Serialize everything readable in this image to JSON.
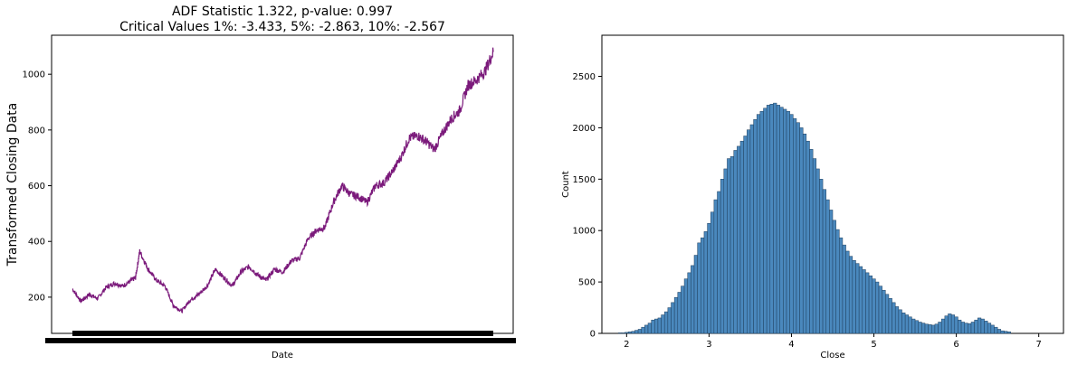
{
  "chart_data": [
    {
      "type": "line",
      "title_lines": [
        "ADF Statistic 1.322, p-value: 0.997",
        "Critical Values 1%: -3.433, 5%: -2.863, 10%: -2.567"
      ],
      "xlabel": "Date",
      "ylabel": "Transformed Closing Data",
      "ylim": [
        70,
        1140
      ],
      "yticks": [
        200,
        400,
        600,
        800,
        1000
      ],
      "line_color": "#7b1a7b",
      "series": [
        {
          "x": [
            0,
            0.02,
            0.04,
            0.06,
            0.08,
            0.1,
            0.12,
            0.14,
            0.15,
            0.16,
            0.18,
            0.2,
            0.22,
            0.24,
            0.26,
            0.28,
            0.3,
            0.32,
            0.34,
            0.36,
            0.38,
            0.4,
            0.42,
            0.44,
            0.46,
            0.48,
            0.5,
            0.52,
            0.54,
            0.56,
            0.58,
            0.6,
            0.62,
            0.64,
            0.66,
            0.68,
            0.7,
            0.72,
            0.74,
            0.76,
            0.78,
            0.8,
            0.82,
            0.84,
            0.86,
            0.88,
            0.9,
            0.92,
            0.94,
            0.96,
            0.98,
            1.0
          ],
          "values": [
            230,
            185,
            210,
            195,
            235,
            250,
            240,
            260,
            270,
            365,
            300,
            260,
            240,
            170,
            150,
            190,
            210,
            240,
            300,
            270,
            240,
            290,
            310,
            280,
            260,
            300,
            290,
            330,
            340,
            410,
            440,
            450,
            540,
            600,
            570,
            560,
            540,
            600,
            610,
            650,
            700,
            770,
            780,
            760,
            730,
            790,
            840,
            870,
            960,
            980,
            1010,
            1080
          ]
        }
      ]
    },
    {
      "type": "bar",
      "xlabel": "Close",
      "ylabel": "Count",
      "xlim": [
        1.7,
        7.3
      ],
      "ylim": [
        0,
        2900
      ],
      "xticks": [
        2,
        3,
        4,
        5,
        6,
        7
      ],
      "yticks": [
        0,
        500,
        1000,
        1500,
        2000,
        2500
      ],
      "bar_color": "#4a88bd",
      "edge_color": "#1f3f5e",
      "bin_start": 1.9,
      "bin_width": 0.04,
      "values": [
        5,
        5,
        10,
        15,
        20,
        30,
        40,
        60,
        80,
        100,
        130,
        140,
        150,
        180,
        210,
        250,
        300,
        350,
        400,
        460,
        530,
        590,
        660,
        760,
        880,
        930,
        990,
        1070,
        1180,
        1300,
        1380,
        1500,
        1600,
        1700,
        1720,
        1780,
        1820,
        1870,
        1920,
        1980,
        2030,
        2080,
        2130,
        2160,
        2190,
        2220,
        2230,
        2240,
        2220,
        2200,
        2180,
        2160,
        2130,
        2090,
        2050,
        2000,
        1940,
        1870,
        1790,
        1700,
        1600,
        1500,
        1400,
        1300,
        1200,
        1100,
        1010,
        930,
        860,
        800,
        750,
        710,
        680,
        650,
        620,
        590,
        560,
        530,
        500,
        460,
        420,
        380,
        340,
        300,
        260,
        230,
        200,
        180,
        160,
        140,
        125,
        110,
        100,
        90,
        85,
        80,
        90,
        110,
        140,
        170,
        190,
        180,
        160,
        130,
        110,
        100,
        95,
        110,
        130,
        150,
        140,
        120,
        100,
        80,
        60,
        40,
        25,
        20,
        15
      ]
    }
  ]
}
